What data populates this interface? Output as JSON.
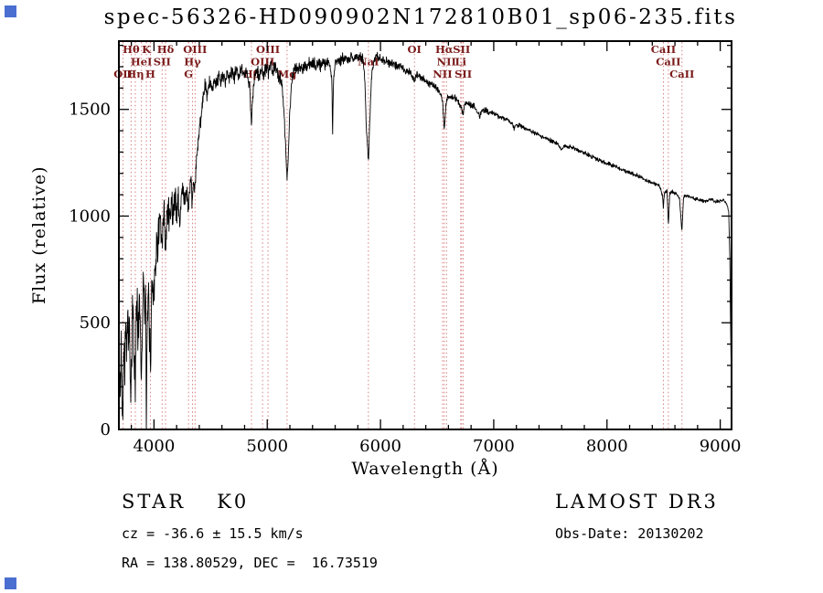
{
  "title": "spec-56326-HD090902N172810B01_sp06-235.fits",
  "axes": {
    "xlabel": "Wavelength (Å)",
    "ylabel": "Flux (relative)"
  },
  "footer": {
    "left": {
      "class_label": "STAR",
      "subclass": "K0",
      "cz": "cz = -36.6 ± 15.5 km/s",
      "radec": "RA = 138.80529, DEC =  16.73519"
    },
    "right": {
      "survey": "LAMOST DR3",
      "obs_date": "Obs-Date: 20130202"
    }
  },
  "colors": {
    "spectrum": "#000000",
    "frame": "#000000",
    "line_marker": "#d88080",
    "line_label": "#7a1a1a",
    "corner_marker": "#4a6fd0"
  },
  "chart_data": {
    "type": "line",
    "title": "spec-56326-HD090902N172810B01_sp06-235.fits",
    "xlabel": "Wavelength (Å)",
    "ylabel": "Flux (relative)",
    "xlim": [
      3690,
      9100
    ],
    "ylim": [
      0,
      1820
    ],
    "xticks": [
      4000,
      5000,
      6000,
      7000,
      8000,
      9000
    ],
    "yticks": [
      0,
      500,
      1000,
      1500
    ],
    "x_minor_step": 200,
    "y_minor_step": 100,
    "grid": false,
    "legend": "none",
    "series": [
      {
        "name": "spectrum",
        "points": [
          [
            3690,
            20
          ],
          [
            3697,
            300
          ],
          [
            3703,
            120
          ],
          [
            3710,
            420
          ],
          [
            3718,
            180
          ],
          [
            3727,
            90
          ],
          [
            3734,
            480
          ],
          [
            3742,
            260
          ],
          [
            3750,
            560
          ],
          [
            3758,
            300
          ],
          [
            3766,
            620
          ],
          [
            3774,
            350
          ],
          [
            3782,
            520
          ],
          [
            3790,
            240
          ],
          [
            3798,
            120
          ],
          [
            3806,
            430
          ],
          [
            3814,
            620
          ],
          [
            3822,
            380
          ],
          [
            3835,
            200
          ],
          [
            3843,
            520
          ],
          [
            3851,
            640
          ],
          [
            3860,
            400
          ],
          [
            3870,
            660
          ],
          [
            3880,
            450
          ],
          [
            3889,
            260
          ],
          [
            3898,
            560
          ],
          [
            3908,
            680
          ],
          [
            3918,
            520
          ],
          [
            3926,
            620
          ],
          [
            3933,
            60
          ],
          [
            3941,
            420
          ],
          [
            3950,
            640
          ],
          [
            3958,
            540
          ],
          [
            3968,
            280
          ],
          [
            3976,
            560
          ],
          [
            3985,
            700
          ],
          [
            3995,
            640
          ],
          [
            4005,
            740
          ],
          [
            4020,
            820
          ],
          [
            4035,
            900
          ],
          [
            4050,
            980
          ],
          [
            4065,
            880
          ],
          [
            4072,
            800
          ],
          [
            4080,
            950
          ],
          [
            4090,
            1020
          ],
          [
            4102,
            780
          ],
          [
            4112,
            980
          ],
          [
            4125,
            1060
          ],
          [
            4140,
            980
          ],
          [
            4155,
            1080
          ],
          [
            4170,
            1000
          ],
          [
            4185,
            1100
          ],
          [
            4200,
            1010
          ],
          [
            4215,
            1090
          ],
          [
            4226,
            950
          ],
          [
            4240,
            1080
          ],
          [
            4255,
            1150
          ],
          [
            4270,
            1060
          ],
          [
            4285,
            1130
          ],
          [
            4305,
            1020
          ],
          [
            4320,
            1160
          ],
          [
            4340,
            1060
          ],
          [
            4352,
            1180
          ],
          [
            4363,
            1120
          ],
          [
            4375,
            1260
          ],
          [
            4390,
            1340
          ],
          [
            4405,
            1420
          ],
          [
            4420,
            1500
          ],
          [
            4435,
            1560
          ],
          [
            4450,
            1600
          ],
          [
            4470,
            1560
          ],
          [
            4490,
            1630
          ],
          [
            4510,
            1590
          ],
          [
            4530,
            1650
          ],
          [
            4550,
            1610
          ],
          [
            4570,
            1660
          ],
          [
            4590,
            1620
          ],
          [
            4610,
            1670
          ],
          [
            4630,
            1630
          ],
          [
            4650,
            1680
          ],
          [
            4670,
            1640
          ],
          [
            4690,
            1680
          ],
          [
            4710,
            1650
          ],
          [
            4730,
            1690
          ],
          [
            4750,
            1650
          ],
          [
            4770,
            1690
          ],
          [
            4790,
            1660
          ],
          [
            4810,
            1690
          ],
          [
            4830,
            1640
          ],
          [
            4845,
            1600
          ],
          [
            4861,
            1440
          ],
          [
            4875,
            1580
          ],
          [
            4890,
            1650
          ],
          [
            4910,
            1680
          ],
          [
            4930,
            1650
          ],
          [
            4950,
            1690
          ],
          [
            4970,
            1660
          ],
          [
            4990,
            1700
          ],
          [
            5010,
            1670
          ],
          [
            5030,
            1700
          ],
          [
            5050,
            1680
          ],
          [
            5070,
            1700
          ],
          [
            5090,
            1670
          ],
          [
            5110,
            1650
          ],
          [
            5130,
            1620
          ],
          [
            5150,
            1480
          ],
          [
            5167,
            1260
          ],
          [
            5175,
            1170
          ],
          [
            5185,
            1280
          ],
          [
            5198,
            1480
          ],
          [
            5212,
            1600
          ],
          [
            5230,
            1670
          ],
          [
            5250,
            1700
          ],
          [
            5270,
            1680
          ],
          [
            5290,
            1710
          ],
          [
            5310,
            1690
          ],
          [
            5330,
            1710
          ],
          [
            5350,
            1690
          ],
          [
            5370,
            1720
          ],
          [
            5390,
            1700
          ],
          [
            5410,
            1720
          ],
          [
            5430,
            1700
          ],
          [
            5450,
            1720
          ],
          [
            5470,
            1700
          ],
          [
            5490,
            1730
          ],
          [
            5510,
            1710
          ],
          [
            5530,
            1730
          ],
          [
            5550,
            1710
          ],
          [
            5570,
            1650
          ],
          [
            5577,
            1380
          ],
          [
            5585,
            1620
          ],
          [
            5600,
            1720
          ],
          [
            5620,
            1740
          ],
          [
            5640,
            1720
          ],
          [
            5660,
            1740
          ],
          [
            5680,
            1730
          ],
          [
            5700,
            1750
          ],
          [
            5720,
            1730
          ],
          [
            5740,
            1750
          ],
          [
            5760,
            1730
          ],
          [
            5780,
            1750
          ],
          [
            5800,
            1740
          ],
          [
            5820,
            1750
          ],
          [
            5840,
            1740
          ],
          [
            5858,
            1680
          ],
          [
            5875,
            1430
          ],
          [
            5893,
            1240
          ],
          [
            5905,
            1450
          ],
          [
            5920,
            1650
          ],
          [
            5940,
            1730
          ],
          [
            5960,
            1750
          ],
          [
            5980,
            1740
          ],
          [
            6000,
            1740
          ],
          [
            6030,
            1730
          ],
          [
            6060,
            1720
          ],
          [
            6090,
            1720
          ],
          [
            6120,
            1710
          ],
          [
            6150,
            1700
          ],
          [
            6180,
            1700
          ],
          [
            6210,
            1690
          ],
          [
            6240,
            1680
          ],
          [
            6270,
            1670
          ],
          [
            6300,
            1630
          ],
          [
            6320,
            1660
          ],
          [
            6350,
            1650
          ],
          [
            6380,
            1640
          ],
          [
            6410,
            1630
          ],
          [
            6440,
            1620
          ],
          [
            6470,
            1610
          ],
          [
            6500,
            1600
          ],
          [
            6530,
            1580
          ],
          [
            6548,
            1540
          ],
          [
            6563,
            1400
          ],
          [
            6578,
            1520
          ],
          [
            6595,
            1560
          ],
          [
            6620,
            1560
          ],
          [
            6650,
            1555
          ],
          [
            6680,
            1545
          ],
          [
            6708,
            1510
          ],
          [
            6716,
            1500
          ],
          [
            6731,
            1480
          ],
          [
            6745,
            1525
          ],
          [
            6770,
            1530
          ],
          [
            6800,
            1520
          ],
          [
            6830,
            1515
          ],
          [
            6860,
            1480
          ],
          [
            6880,
            1470
          ],
          [
            6900,
            1500
          ],
          [
            6930,
            1495
          ],
          [
            6960,
            1485
          ],
          [
            7000,
            1480
          ],
          [
            7040,
            1470
          ],
          [
            7080,
            1460
          ],
          [
            7120,
            1450
          ],
          [
            7160,
            1435
          ],
          [
            7180,
            1410
          ],
          [
            7200,
            1430
          ],
          [
            7240,
            1420
          ],
          [
            7280,
            1410
          ],
          [
            7320,
            1400
          ],
          [
            7360,
            1390
          ],
          [
            7400,
            1380
          ],
          [
            7440,
            1370
          ],
          [
            7480,
            1360
          ],
          [
            7520,
            1350
          ],
          [
            7560,
            1340
          ],
          [
            7600,
            1310
          ],
          [
            7620,
            1330
          ],
          [
            7660,
            1325
          ],
          [
            7700,
            1320
          ],
          [
            7740,
            1310
          ],
          [
            7780,
            1300
          ],
          [
            7820,
            1290
          ],
          [
            7860,
            1280
          ],
          [
            7900,
            1270
          ],
          [
            7940,
            1260
          ],
          [
            7980,
            1250
          ],
          [
            8020,
            1245
          ],
          [
            8060,
            1235
          ],
          [
            8100,
            1225
          ],
          [
            8140,
            1215
          ],
          [
            8180,
            1205
          ],
          [
            8220,
            1200
          ],
          [
            8260,
            1190
          ],
          [
            8300,
            1180
          ],
          [
            8340,
            1170
          ],
          [
            8380,
            1160
          ],
          [
            8420,
            1155
          ],
          [
            8460,
            1145
          ],
          [
            8490,
            1100
          ],
          [
            8498,
            1040
          ],
          [
            8508,
            1110
          ],
          [
            8530,
            1120
          ],
          [
            8542,
            950
          ],
          [
            8554,
            1110
          ],
          [
            8580,
            1115
          ],
          [
            8610,
            1105
          ],
          [
            8640,
            1080
          ],
          [
            8662,
            930
          ],
          [
            8676,
            1090
          ],
          [
            8700,
            1095
          ],
          [
            8740,
            1090
          ],
          [
            8780,
            1080
          ],
          [
            8820,
            1075
          ],
          [
            8860,
            1070
          ],
          [
            8900,
            1075
          ],
          [
            8930,
            1080
          ],
          [
            8950,
            1065
          ],
          [
            9000,
            1070
          ],
          [
            9030,
            1075
          ],
          [
            9060,
            1055
          ],
          [
            9075,
            1020
          ],
          [
            9085,
            800
          ],
          [
            9092,
            450
          ],
          [
            9098,
            230
          ],
          [
            9100,
            170
          ]
        ]
      }
    ],
    "noise_envelope": [
      [
        3690,
        140
      ],
      [
        3800,
        150
      ],
      [
        3900,
        150
      ],
      [
        4000,
        130
      ],
      [
        4100,
        110
      ],
      [
        4200,
        90
      ],
      [
        4300,
        70
      ],
      [
        4400,
        55
      ],
      [
        4500,
        45
      ],
      [
        4700,
        40
      ],
      [
        4900,
        38
      ],
      [
        5100,
        35
      ],
      [
        5300,
        33
      ],
      [
        5500,
        32
      ],
      [
        5700,
        30
      ],
      [
        5900,
        28
      ],
      [
        6100,
        25
      ],
      [
        6300,
        22
      ],
      [
        6500,
        20
      ],
      [
        6700,
        18
      ],
      [
        6900,
        16
      ],
      [
        7100,
        14
      ],
      [
        7400,
        13
      ],
      [
        7700,
        12
      ],
      [
        8000,
        12
      ],
      [
        8300,
        12
      ],
      [
        8600,
        11
      ],
      [
        9100,
        9
      ]
    ],
    "spectral_lines": [
      {
        "wavelength": 3727,
        "label": "OII",
        "row": 3
      },
      {
        "wavelength": 3798,
        "label": "Hθ",
        "row": 1
      },
      {
        "wavelength": 3835,
        "label": "Hη",
        "row": 3
      },
      {
        "wavelength": 3889,
        "label": "HeI",
        "row": 2
      },
      {
        "wavelength": 3933,
        "label": "K",
        "row": 1
      },
      {
        "wavelength": 3968,
        "label": "H",
        "row": 3
      },
      {
        "wavelength": 4072,
        "label": "SII",
        "row": 2
      },
      {
        "wavelength": 4102,
        "label": "Hδ",
        "row": 1
      },
      {
        "wavelength": 4305,
        "label": "G",
        "row": 3
      },
      {
        "wavelength": 4340,
        "label": "Hγ",
        "row": 2
      },
      {
        "wavelength": 4363,
        "label": "OIII",
        "row": 1
      },
      {
        "wavelength": 4861,
        "label": "Hβ",
        "row": 3
      },
      {
        "wavelength": 4959,
        "label": "OIII",
        "row": 2
      },
      {
        "wavelength": 5007,
        "label": "OIII",
        "row": 1
      },
      {
        "wavelength": 5175,
        "label": "Mg",
        "row": 3
      },
      {
        "wavelength": 5893,
        "label": "NaI",
        "row": 2
      },
      {
        "wavelength": 6300,
        "label": "OI",
        "row": 1
      },
      {
        "wavelength": 6548,
        "label": "NII",
        "row": 3
      },
      {
        "wavelength": 6563,
        "label": "Hα",
        "row": 1
      },
      {
        "wavelength": 6583,
        "label": "NII",
        "row": 2
      },
      {
        "wavelength": 6708,
        "label": "Li",
        "row": 2
      },
      {
        "wavelength": 6716,
        "label": "SII",
        "row": 1
      },
      {
        "wavelength": 6731,
        "label": "SII",
        "row": 3
      },
      {
        "wavelength": 8498,
        "label": "CaII",
        "row": 1
      },
      {
        "wavelength": 8542,
        "label": "CaII",
        "row": 2
      },
      {
        "wavelength": 8662,
        "label": "CaII",
        "row": 3
      }
    ]
  }
}
